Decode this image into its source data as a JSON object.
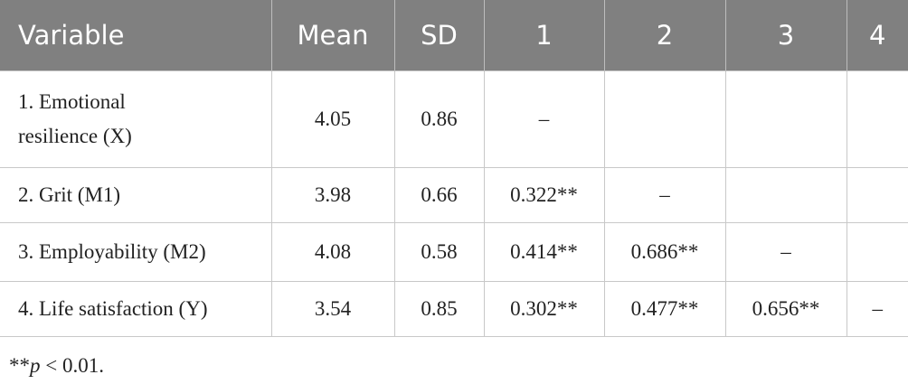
{
  "table": {
    "header": [
      "Variable",
      "Mean",
      "SD",
      "1",
      "2",
      "3",
      "4"
    ],
    "rows": [
      [
        "1. Emotional resilience (X)",
        "4.05",
        "0.86",
        "–",
        null,
        null,
        null
      ],
      [
        "2. Grit (M1)",
        "3.98",
        "0.66",
        "0.322**",
        "–",
        null,
        null
      ],
      [
        "3. Employability (M2)",
        "4.08",
        "0.58",
        "0.414**",
        "0.686**",
        "–",
        null
      ],
      [
        "4. Life satisfaction (Y)",
        "3.54",
        "0.85",
        "0.302**",
        "0.477**",
        "0.656**",
        "–"
      ]
    ]
  },
  "footnote": {
    "prefix": "**",
    "italic": "p",
    "suffix": " < 0.01."
  }
}
